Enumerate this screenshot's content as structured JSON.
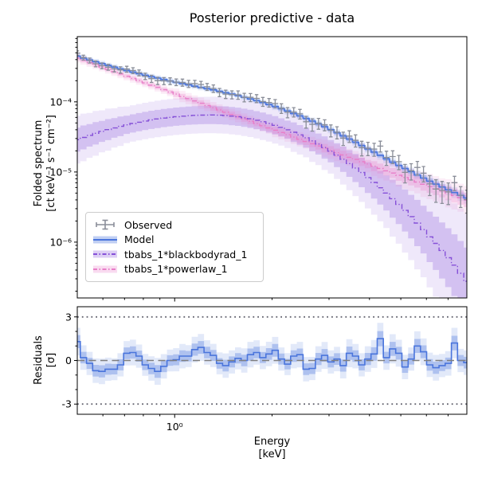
{
  "title": "Posterior predictive - data",
  "axes": {
    "top": {
      "ylabel": [
        "Folded spectrum",
        "[ct keV⁻¹ s⁻¹ cm⁻²]"
      ],
      "ytick_labels": [
        "10⁻⁴",
        "10⁻⁵",
        "10⁻⁶"
      ],
      "ytick_values": [
        0.0001,
        1e-05,
        1e-06
      ]
    },
    "bottom": {
      "ylabel": [
        "Residuals",
        "[σ]"
      ],
      "ytick_labels": [
        "3",
        "0",
        "-3"
      ],
      "ytick_values": [
        3,
        0,
        -3
      ],
      "minor_ticks": [
        2,
        1,
        -1,
        -2
      ]
    },
    "x": {
      "label": [
        "Energy",
        "[keV]"
      ],
      "tick_label": "10⁰",
      "tick_value": 1.0,
      "minor_ticks": [
        0.6,
        0.7,
        0.8,
        0.9,
        2,
        3,
        4,
        5,
        6,
        7
      ]
    }
  },
  "legend": {
    "items": [
      {
        "label": "Observed",
        "type": "errorbar"
      },
      {
        "label": "Model",
        "type": "band-line"
      },
      {
        "label": "tbabs_1*blackbodyrad_1",
        "type": "band-dashdot"
      },
      {
        "label": "tbabs_1*powerlaw_1",
        "type": "band-dashdot"
      }
    ]
  },
  "colors": {
    "observed": "#8a8e99",
    "model": "#4a75dc",
    "model_band": "#4a75dc",
    "blackbody": "#8550d8",
    "blackbody_band": "#8550d8",
    "powerlaw": "#e87ec8",
    "powerlaw_band": "#e87ec8",
    "residual_line": "#4a75dc",
    "zero_dash": "#7f7f7f",
    "sigma_dots": "#63636f",
    "axis": "#000000"
  },
  "chart_data": {
    "type": "line",
    "x_scale": "log",
    "y_scale_top": "log",
    "xlabel": "Energy [keV]",
    "ylabel_top": "Folded spectrum [ct keV⁻¹ s⁻¹ cm⁻²]",
    "ylabel_bottom": "Residuals [σ]",
    "xlim": [
      0.5,
      8.0
    ],
    "ylim_top": [
      1.6e-07,
      0.00085
    ],
    "ylim_residuals": [
      -3.7,
      3.7
    ],
    "energies": [
      0.5,
      0.522,
      0.546,
      0.57,
      0.596,
      0.623,
      0.651,
      0.68,
      0.711,
      0.743,
      0.776,
      0.811,
      0.848,
      0.886,
      0.926,
      0.968,
      1.011,
      1.057,
      1.104,
      1.154,
      1.206,
      1.26,
      1.317,
      1.376,
      1.438,
      1.503,
      1.57,
      1.641,
      1.715,
      1.792,
      1.873,
      1.957,
      2.045,
      2.137,
      2.233,
      2.334,
      2.439,
      2.548,
      2.663,
      2.783,
      2.908,
      3.039,
      3.175,
      3.318,
      3.467,
      3.623,
      3.786,
      3.957,
      4.135,
      4.321,
      4.515,
      4.718,
      4.93,
      5.152,
      5.383,
      5.625,
      5.878,
      6.143,
      6.419,
      6.708,
      7.009,
      7.325,
      7.654,
      8.0
    ],
    "observed": {
      "values": [
        0.000496,
        0.000428,
        0.000389,
        0.000349,
        0.000327,
        0.000312,
        0.000295,
        0.000286,
        0.000293,
        0.00028,
        0.00026,
        0.000232,
        0.000214,
        0.0002,
        0.000199,
        0.000198,
        0.000191,
        0.000189,
        0.000181,
        0.000182,
        0.000177,
        0.000164,
        0.000155,
        0.000137,
        0.000129,
        0.000127,
        0.000126,
        0.000116,
        0.000116,
        0.000112,
        0.000101,
        9.78e-05,
        9.47e-05,
        8.11e-05,
        7.1e-05,
        7.17e-05,
        6.74e-05,
        5.21e-05,
        4.78e-05,
        4.94e-05,
        4.7e-05,
        3.93e-05,
        3.69e-05,
        3.04e-05,
        3.25e-05,
        2.82e-05,
        2.22e-05,
        2.18e-05,
        2.12e-05,
        2.34e-05,
        1.61e-05,
        1.66e-05,
        1.4e-05,
        9.89e-06,
        1.04e-05,
        1.16e-05,
        9.61e-06,
        6.75e-06,
        5.71e-06,
        5.45e-06,
        5.21e-06,
        7.04e-06,
        4.65e-06,
        4.04e-06
      ],
      "rel_err": [
        0.08,
        0.08,
        0.08,
        0.09,
        0.09,
        0.09,
        0.09,
        0.1,
        0.1,
        0.1,
        0.1,
        0.1,
        0.11,
        0.11,
        0.11,
        0.11,
        0.11,
        0.12,
        0.12,
        0.12,
        0.12,
        0.12,
        0.13,
        0.13,
        0.13,
        0.13,
        0.14,
        0.14,
        0.14,
        0.14,
        0.15,
        0.15,
        0.15,
        0.16,
        0.16,
        0.16,
        0.17,
        0.17,
        0.18,
        0.18,
        0.19,
        0.19,
        0.2,
        0.2,
        0.21,
        0.21,
        0.22,
        0.22,
        0.23,
        0.24,
        0.24,
        0.25,
        0.26,
        0.26,
        0.27,
        0.28,
        0.29,
        0.29,
        0.3,
        0.31,
        0.32,
        0.32,
        0.33,
        0.34
      ]
    },
    "model": {
      "values": [
        0.000449,
        0.000421,
        0.000395,
        0.000373,
        0.000351,
        0.00033,
        0.000312,
        0.000295,
        0.000279,
        0.000265,
        0.000252,
        0.000239,
        0.000228,
        0.000218,
        0.000208,
        0.000198,
        0.00019,
        0.000182,
        0.000175,
        0.000167,
        0.00016,
        0.000154,
        0.000148,
        0.000141,
        0.000135,
        0.000129,
        0.000123,
        0.000116,
        0.00011,
        0.000104,
        9.78e-05,
        9.16e-05,
        8.57e-05,
        7.98e-05,
        7.4e-05,
        6.84e-05,
        6.31e-05,
        5.8e-05,
        5.31e-05,
        4.85e-05,
        4.41e-05,
        4.01e-05,
        3.62e-05,
        3.27e-05,
        2.94e-05,
        2.65e-05,
        2.38e-05,
        2.13e-05,
        1.92e-05,
        1.72e-05,
        1.54e-05,
        1.38e-05,
        1.24e-05,
        1.12e-05,
        1.01e-05,
        9.06e-06,
        8.19e-06,
        7.39e-06,
        6.72e-06,
        6.11e-06,
        5.57e-06,
        5.09e-06,
        4.65e-06,
        4.26e-06
      ],
      "w1": [
        0.02,
        0.02,
        0.02,
        0.02,
        0.02,
        0.02,
        0.02,
        0.02,
        0.02,
        0.02,
        0.02,
        0.02,
        0.02,
        0.02,
        0.02,
        0.02,
        0.02,
        0.02,
        0.02,
        0.02,
        0.02,
        0.02,
        0.02,
        0.02,
        0.02,
        0.02,
        0.02,
        0.02,
        0.02,
        0.02,
        0.02,
        0.02,
        0.025,
        0.025,
        0.025,
        0.025,
        0.025,
        0.025,
        0.025,
        0.025,
        0.025,
        0.025,
        0.025,
        0.025,
        0.025,
        0.025,
        0.025,
        0.025,
        0.03,
        0.03,
        0.03,
        0.03,
        0.03,
        0.03,
        0.03,
        0.03,
        0.04,
        0.04,
        0.04,
        0.04,
        0.04,
        0.04,
        0.04,
        0.04
      ],
      "outer_scale": 2.0
    },
    "blackbodyrad": {
      "values": [
        2.89e-05,
        3.11e-05,
        3.33e-05,
        3.56e-05,
        3.79e-05,
        4.02e-05,
        4.25e-05,
        4.47e-05,
        4.7e-05,
        4.92e-05,
        5.13e-05,
        5.33e-05,
        5.53e-05,
        5.7e-05,
        5.87e-05,
        6.01e-05,
        6.14e-05,
        6.25e-05,
        6.35e-05,
        6.41e-05,
        6.47e-05,
        6.49e-05,
        6.5e-05,
        6.45e-05,
        6.39e-05,
        6.26e-05,
        6.13e-05,
        5.93e-05,
        5.73e-05,
        5.47e-05,
        5.21e-05,
        4.92e-05,
        4.63e-05,
        4.32e-05,
        4e-05,
        3.69e-05,
        3.38e-05,
        3.08e-05,
        2.78e-05,
        2.5e-05,
        2.23e-05,
        1.98e-05,
        1.74e-05,
        1.52e-05,
        1.32e-05,
        1.14e-05,
        9.83e-06,
        8.33e-06,
        7.1e-06,
        5.96e-06,
        5.01e-06,
        4.16e-06,
        3.45e-06,
        2.83e-06,
        2.31e-06,
        1.87e-06,
        1.51e-06,
        1.19e-06,
        9.6e-07,
        7.6e-07,
        6e-07,
        4.7e-07,
        3.6e-07,
        2.77e-07
      ],
      "w1": [
        0.17,
        0.17,
        0.16,
        0.16,
        0.15,
        0.15,
        0.14,
        0.14,
        0.13,
        0.13,
        0.13,
        0.13,
        0.13,
        0.13,
        0.13,
        0.13,
        0.13,
        0.13,
        0.13,
        0.13,
        0.13,
        0.13,
        0.13,
        0.13,
        0.13,
        0.13,
        0.13,
        0.13,
        0.13,
        0.13,
        0.13,
        0.13,
        0.13,
        0.13,
        0.13,
        0.14,
        0.14,
        0.14,
        0.15,
        0.15,
        0.16,
        0.16,
        0.17,
        0.18,
        0.19,
        0.2,
        0.21,
        0.22,
        0.23,
        0.24,
        0.25,
        0.27,
        0.28,
        0.3,
        0.31,
        0.33,
        0.34,
        0.36,
        0.38,
        0.4,
        0.42,
        0.44,
        0.46,
        0.48
      ],
      "outer_scale": 2.0
    },
    "powerlaw": {
      "values": [
        0.00042,
        0.00039,
        0.000362,
        0.000337,
        0.000313,
        0.00029,
        0.000269,
        0.00025,
        0.000232,
        0.000216,
        0.000201,
        0.000186,
        0.000173,
        0.000161,
        0.000149,
        0.000138,
        0.000129,
        0.000119,
        0.000111,
        0.000103,
        9.56e-05,
        8.88e-05,
        8.25e-05,
        7.66e-05,
        7.11e-05,
        6.6e-05,
        6.14e-05,
        5.7e-05,
        5.29e-05,
        4.92e-05,
        4.57e-05,
        4.24e-05,
        3.94e-05,
        3.66e-05,
        3.4e-05,
        3.15e-05,
        2.93e-05,
        2.72e-05,
        2.53e-05,
        2.35e-05,
        2.18e-05,
        2.03e-05,
        1.88e-05,
        1.75e-05,
        1.62e-05,
        1.51e-05,
        1.4e-05,
        1.3e-05,
        1.21e-05,
        1.12e-05,
        1.04e-05,
        9.66e-06,
        8.98e-06,
        8.34e-06,
        7.75e-06,
        7.19e-06,
        6.68e-06,
        6.2e-06,
        5.76e-06,
        5.35e-06,
        4.97e-06,
        4.62e-06,
        4.29e-06,
        3.98e-06
      ],
      "w1": [
        0.03,
        0.03,
        0.03,
        0.03,
        0.03,
        0.03,
        0.03,
        0.03,
        0.03,
        0.03,
        0.03,
        0.03,
        0.03,
        0.03,
        0.03,
        0.03,
        0.04,
        0.04,
        0.04,
        0.04,
        0.04,
        0.04,
        0.04,
        0.04,
        0.04,
        0.04,
        0.04,
        0.04,
        0.04,
        0.04,
        0.04,
        0.04,
        0.05,
        0.05,
        0.05,
        0.05,
        0.05,
        0.05,
        0.05,
        0.05,
        0.06,
        0.06,
        0.06,
        0.06,
        0.06,
        0.06,
        0.06,
        0.06,
        0.07,
        0.07,
        0.07,
        0.07,
        0.08,
        0.08,
        0.08,
        0.08,
        0.09,
        0.09,
        0.09,
        0.09,
        0.1,
        0.1,
        0.1,
        0.1
      ],
      "outer_scale": 2.0
    },
    "residuals": {
      "values": [
        1.3,
        0.2,
        -0.2,
        -0.7,
        -0.75,
        -0.6,
        -0.6,
        -0.3,
        0.5,
        0.55,
        0.3,
        -0.3,
        -0.55,
        -0.75,
        -0.4,
        0.0,
        0.05,
        0.3,
        0.3,
        0.75,
        0.9,
        0.55,
        0.35,
        -0.2,
        -0.35,
        -0.1,
        0.15,
        0.0,
        0.4,
        0.55,
        0.2,
        0.45,
        0.7,
        0.1,
        -0.25,
        0.3,
        0.4,
        -0.6,
        -0.55,
        0.1,
        0.35,
        -0.1,
        0.1,
        -0.35,
        0.5,
        0.3,
        -0.3,
        0.1,
        0.45,
        1.5,
        0.2,
        0.8,
        0.5,
        -0.45,
        0.1,
        1.0,
        0.6,
        -0.3,
        -0.5,
        -0.35,
        -0.2,
        1.2,
        0.0,
        -0.15
      ],
      "w1": [
        0.45,
        0.4,
        0.38,
        0.4,
        0.42,
        0.38,
        0.36,
        0.38,
        0.4,
        0.42,
        0.38,
        0.36,
        0.4,
        0.44,
        0.4,
        0.36,
        0.38,
        0.4,
        0.36,
        0.42,
        0.44,
        0.4,
        0.38,
        0.36,
        0.4,
        0.38,
        0.36,
        0.4,
        0.42,
        0.4,
        0.38,
        0.4,
        0.44,
        0.38,
        0.36,
        0.4,
        0.42,
        0.4,
        0.38,
        0.42,
        0.44,
        0.38,
        0.4,
        0.42,
        0.46,
        0.4,
        0.38,
        0.42,
        0.46,
        0.52,
        0.4,
        0.48,
        0.44,
        0.4,
        0.38,
        0.48,
        0.44,
        0.4,
        0.42,
        0.38,
        0.4,
        0.5,
        0.38,
        0.4
      ],
      "outer_scale": 2.1,
      "hlines": [
        3,
        0,
        -3
      ]
    }
  }
}
